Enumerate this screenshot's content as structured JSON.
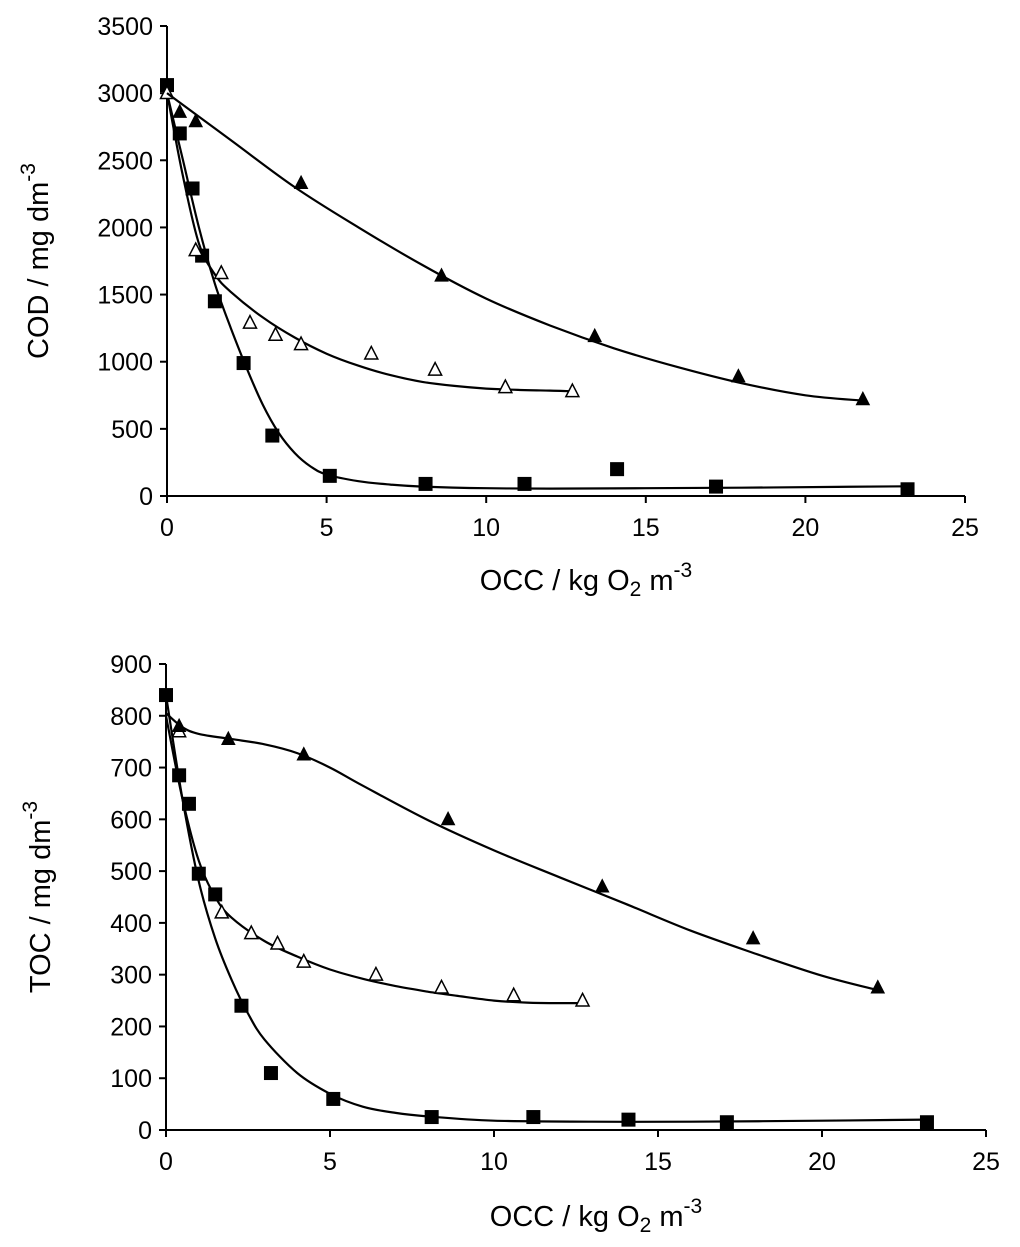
{
  "chart_data": [
    {
      "type": "scatter",
      "title": "",
      "xlabel": {
        "main": "OCC / kg O",
        "sub": "2",
        "mid": " m",
        "sup": "-3"
      },
      "ylabel": {
        "main": "COD / mg dm",
        "sup": "-3"
      },
      "xlim": [
        0,
        25
      ],
      "ylim": [
        0,
        3500
      ],
      "xticks": [
        0,
        5,
        10,
        15,
        20,
        25
      ],
      "yticks": [
        0,
        500,
        1000,
        1500,
        2000,
        2500,
        3000,
        3500
      ],
      "grid": false,
      "series": [
        {
          "marker": "filled-square",
          "x": [
            0,
            0.4,
            0.8,
            1.1,
            1.5,
            2.4,
            3.3,
            5.1,
            8.1,
            11.2,
            14.1,
            17.2,
            23.2
          ],
          "y": [
            3060,
            2700,
            2290,
            1790,
            1450,
            990,
            450,
            150,
            90,
            90,
            200,
            70,
            50
          ],
          "fit_x": [
            0,
            0.5,
            1,
            1.5,
            2,
            2.5,
            3,
            3.5,
            4,
            4.5,
            5,
            6,
            7,
            8,
            10,
            12,
            15,
            18,
            21,
            23.2
          ],
          "fit_y": [
            3000,
            2500,
            2000,
            1580,
            1250,
            950,
            680,
            470,
            320,
            220,
            160,
            110,
            85,
            70,
            58,
            55,
            58,
            62,
            68,
            72
          ]
        },
        {
          "marker": "open-triangle",
          "x": [
            0,
            0.9,
            1.7,
            2.6,
            3.4,
            4.2,
            6.4,
            8.4,
            10.6,
            12.7
          ],
          "y": [
            3000,
            1830,
            1660,
            1290,
            1200,
            1130,
            1060,
            940,
            810,
            780
          ],
          "fit_x": [
            0,
            0.5,
            1,
            1.5,
            2,
            3,
            4,
            5,
            6,
            7,
            8,
            9,
            10,
            11,
            12,
            12.7
          ],
          "fit_y": [
            3000,
            2380,
            1880,
            1650,
            1520,
            1330,
            1180,
            1060,
            970,
            900,
            850,
            820,
            800,
            790,
            785,
            780
          ]
        },
        {
          "marker": "filled-triangle",
          "x": [
            0.4,
            0.9,
            4.2,
            8.6,
            13.4,
            17.9,
            21.8
          ],
          "y": [
            2860,
            2790,
            2330,
            1640,
            1190,
            890,
            720
          ],
          "fit_x": [
            0,
            2,
            4,
            6,
            8,
            10,
            12,
            14,
            16,
            18,
            20,
            21.8
          ],
          "fit_y": [
            3000,
            2650,
            2300,
            2000,
            1720,
            1470,
            1270,
            1100,
            960,
            840,
            750,
            710
          ]
        }
      ]
    },
    {
      "type": "scatter",
      "title": "",
      "xlabel": {
        "main": "OCC / kg O",
        "sub": "2",
        "mid": " m",
        "sup": "-3"
      },
      "ylabel": {
        "main": "TOC / mg  dm",
        "sup": "-3"
      },
      "xlim": [
        0,
        25
      ],
      "ylim": [
        0,
        900
      ],
      "xticks": [
        0,
        5,
        10,
        15,
        20,
        25
      ],
      "yticks": [
        0,
        100,
        200,
        300,
        400,
        500,
        600,
        700,
        800,
        900
      ],
      "grid": false,
      "series": [
        {
          "marker": "filled-square",
          "x": [
            0,
            0.4,
            0.7,
            1.0,
            1.5,
            2.3,
            3.2,
            5.1,
            8.1,
            11.2,
            14.1,
            17.1,
            23.2
          ],
          "y": [
            840,
            685,
            630,
            495,
            455,
            240,
            110,
            60,
            25,
            25,
            20,
            15,
            15
          ],
          "fit_x": [
            0,
            0.5,
            1,
            1.5,
            2,
            2.5,
            3,
            4,
            5,
            6,
            7,
            8,
            10,
            13,
            16,
            20,
            23.2
          ],
          "fit_y": [
            840,
            640,
            480,
            370,
            290,
            225,
            175,
            110,
            70,
            45,
            33,
            26,
            18,
            16,
            16,
            18,
            20
          ]
        },
        {
          "marker": "open-triangle",
          "x": [
            0.4,
            1.7,
            2.6,
            3.4,
            4.2,
            6.4,
            8.4,
            10.6,
            12.7
          ],
          "y": [
            770,
            420,
            380,
            360,
            325,
            300,
            275,
            260,
            250
          ],
          "fit_x": [
            0,
            0.5,
            1,
            1.5,
            2,
            3,
            4,
            5,
            6,
            7,
            8,
            9,
            10,
            11,
            12,
            12.7
          ],
          "fit_y": [
            800,
            640,
            520,
            450,
            410,
            365,
            335,
            310,
            292,
            278,
            267,
            258,
            250,
            246,
            245,
            245
          ]
        },
        {
          "marker": "filled-triangle",
          "x": [
            0.4,
            1.9,
            4.2,
            8.6,
            13.3,
            17.9,
            21.7
          ],
          "y": [
            780,
            755,
            725,
            600,
            470,
            370,
            275
          ],
          "fit_x": [
            0,
            0.5,
            1,
            2,
            3,
            4,
            5,
            6,
            8,
            10,
            12,
            14,
            16,
            18,
            20,
            21.7
          ],
          "fit_y": [
            805,
            778,
            765,
            755,
            745,
            728,
            700,
            665,
            598,
            540,
            488,
            437,
            385,
            340,
            298,
            270
          ]
        }
      ]
    }
  ]
}
